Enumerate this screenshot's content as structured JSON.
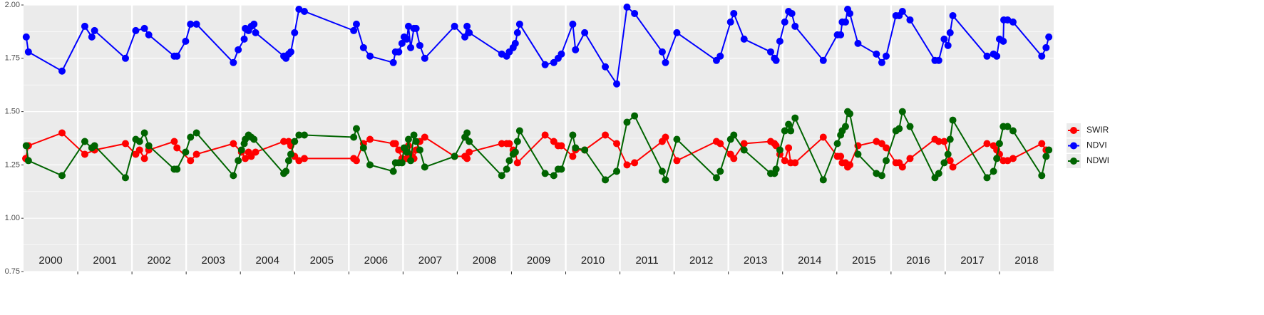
{
  "chart_data": {
    "type": "line",
    "xlim": [
      2000,
      2019
    ],
    "xticks": [
      2001,
      2002,
      2003,
      2004,
      2005,
      2006,
      2007,
      2008,
      2009,
      2010,
      2011,
      2012,
      2013,
      2014,
      2015,
      2016,
      2017,
      2018
    ],
    "ylim": [
      0.75,
      2.0
    ],
    "yticks": [
      {
        "value": 0.75,
        "label": "0.75"
      },
      {
        "value": 1.0,
        "label": "1.00"
      },
      {
        "value": 1.25,
        "label": "1.25"
      },
      {
        "value": 1.5,
        "label": "1.50"
      },
      {
        "value": 1.75,
        "label": "1.75"
      },
      {
        "value": 2.0,
        "label": "2.00"
      }
    ],
    "grid": true,
    "legend": "right",
    "year_labels": [
      "2000",
      "2001",
      "2002",
      "2003",
      "2004",
      "2005",
      "2006",
      "2007",
      "2008",
      "2009",
      "2010",
      "2011",
      "2012",
      "2013",
      "2014",
      "2015",
      "2016",
      "2017",
      "2018"
    ],
    "series": [
      {
        "name": "SWIR",
        "color": "#ff0000",
        "x": [
          2000.04,
          2000.09,
          2000.71,
          2001.13,
          2001.31,
          2001.88,
          2002.07,
          2002.14,
          2002.23,
          2002.31,
          2002.78,
          2002.83,
          2003.08,
          2003.19,
          2003.87,
          2004.02,
          2004.09,
          2004.15,
          2004.2,
          2004.28,
          2004.8,
          2004.89,
          2004.93,
          2005.0,
          2005.08,
          2005.18,
          2006.09,
          2006.14,
          2006.27,
          2006.39,
          2006.82,
          2006.86,
          2006.92,
          2006.98,
          2007.02,
          2007.07,
          2007.1,
          2007.14,
          2007.2,
          2007.24,
          2007.31,
          2007.4,
          2007.95,
          2008.14,
          2008.18,
          2008.22,
          2008.82,
          2008.91,
          2008.96,
          2009.03,
          2009.07,
          2009.11,
          2009.62,
          2009.78,
          2009.86,
          2009.92,
          2010.13,
          2010.18,
          2010.35,
          2010.73,
          2010.94,
          2011.13,
          2011.27,
          2011.78,
          2011.84,
          2012.05,
          2012.78,
          2012.85,
          2013.04,
          2013.1,
          2013.29,
          2013.78,
          2013.85,
          2013.88,
          2013.95,
          2014.04,
          2014.11,
          2014.15,
          2014.23,
          2014.75,
          2015.01,
          2015.07,
          2015.1,
          2015.16,
          2015.2,
          2015.24,
          2015.39,
          2015.73,
          2015.83,
          2015.91,
          2016.09,
          2016.15,
          2016.21,
          2016.35,
          2016.81,
          2016.88,
          2016.98,
          2017.09,
          2017.14,
          2017.77,
          2017.89,
          2017.95,
          2018.0,
          2018.07,
          2018.15,
          2018.25,
          2018.78,
          2018.86
        ],
        "values": [
          1.28,
          1.34,
          1.4,
          1.3,
          1.32,
          1.35,
          1.3,
          1.32,
          1.28,
          1.32,
          1.36,
          1.33,
          1.27,
          1.3,
          1.35,
          1.31,
          1.28,
          1.31,
          1.29,
          1.31,
          1.36,
          1.36,
          1.34,
          1.29,
          1.27,
          1.28,
          1.28,
          1.27,
          1.35,
          1.37,
          1.35,
          1.35,
          1.32,
          1.28,
          1.32,
          1.28,
          1.34,
          1.3,
          1.28,
          1.32,
          1.36,
          1.38,
          1.29,
          1.29,
          1.28,
          1.31,
          1.35,
          1.35,
          1.35,
          1.32,
          1.31,
          1.26,
          1.39,
          1.36,
          1.34,
          1.34,
          1.29,
          1.32,
          1.32,
          1.39,
          1.35,
          1.25,
          1.26,
          1.36,
          1.38,
          1.27,
          1.36,
          1.35,
          1.3,
          1.28,
          1.35,
          1.36,
          1.35,
          1.34,
          1.3,
          1.27,
          1.33,
          1.26,
          1.26,
          1.38,
          1.29,
          1.29,
          1.26,
          1.26,
          1.24,
          1.25,
          1.34,
          1.36,
          1.35,
          1.33,
          1.26,
          1.26,
          1.24,
          1.28,
          1.37,
          1.36,
          1.36,
          1.27,
          1.24,
          1.35,
          1.34,
          1.32,
          1.3,
          1.27,
          1.27,
          1.28,
          1.35,
          1.32
        ]
      },
      {
        "name": "NDVI",
        "color": "#0000ff",
        "x": [
          2000.05,
          2000.09,
          2000.71,
          2001.13,
          2001.26,
          2001.31,
          2001.88,
          2002.07,
          2002.23,
          2002.31,
          2002.78,
          2002.83,
          2002.99,
          2003.08,
          2003.19,
          2003.87,
          2003.96,
          2004.07,
          2004.09,
          2004.15,
          2004.2,
          2004.25,
          2004.28,
          2004.8,
          2004.84,
          2004.89,
          2004.93,
          2005.0,
          2005.08,
          2005.18,
          2006.09,
          2006.14,
          2006.27,
          2006.39,
          2006.82,
          2006.86,
          2006.92,
          2006.98,
          2007.02,
          2007.07,
          2007.1,
          2007.14,
          2007.2,
          2007.24,
          2007.31,
          2007.4,
          2007.95,
          2008.14,
          2008.18,
          2008.22,
          2008.82,
          2008.91,
          2008.96,
          2009.03,
          2009.07,
          2009.11,
          2009.15,
          2009.62,
          2009.78,
          2009.86,
          2009.92,
          2010.13,
          2010.18,
          2010.35,
          2010.73,
          2010.94,
          2011.13,
          2011.27,
          2011.78,
          2011.84,
          2012.05,
          2012.78,
          2012.85,
          2013.04,
          2013.1,
          2013.29,
          2013.78,
          2013.85,
          2013.88,
          2013.95,
          2014.04,
          2014.11,
          2014.17,
          2014.23,
          2014.75,
          2015.01,
          2015.07,
          2015.1,
          2015.16,
          2015.2,
          2015.24,
          2015.39,
          2015.73,
          2015.83,
          2015.91,
          2016.09,
          2016.15,
          2016.21,
          2016.35,
          2016.81,
          2016.88,
          2016.98,
          2017.05,
          2017.09,
          2017.14,
          2017.77,
          2017.89,
          2017.95,
          2018.0,
          2018.07,
          2018.08,
          2018.15,
          2018.25,
          2018.78,
          2018.86,
          2018.91
        ],
        "values": [
          1.85,
          1.78,
          1.69,
          1.9,
          1.85,
          1.88,
          1.75,
          1.88,
          1.89,
          1.86,
          1.76,
          1.76,
          1.83,
          1.91,
          1.91,
          1.73,
          1.79,
          1.84,
          1.89,
          1.88,
          1.9,
          1.91,
          1.87,
          1.76,
          1.75,
          1.77,
          1.78,
          1.87,
          1.98,
          1.97,
          1.88,
          1.91,
          1.8,
          1.76,
          1.73,
          1.78,
          1.78,
          1.82,
          1.85,
          1.84,
          1.9,
          1.8,
          1.89,
          1.89,
          1.81,
          1.75,
          1.9,
          1.85,
          1.9,
          1.87,
          1.77,
          1.76,
          1.78,
          1.8,
          1.82,
          1.87,
          1.91,
          1.72,
          1.73,
          1.75,
          1.77,
          1.91,
          1.79,
          1.87,
          1.71,
          1.63,
          1.99,
          1.96,
          1.78,
          1.73,
          1.87,
          1.74,
          1.76,
          1.92,
          1.96,
          1.84,
          1.78,
          1.75,
          1.74,
          1.83,
          1.92,
          1.97,
          1.96,
          1.9,
          1.74,
          1.86,
          1.86,
          1.92,
          1.92,
          1.98,
          1.96,
          1.82,
          1.77,
          1.73,
          1.76,
          1.95,
          1.95,
          1.97,
          1.93,
          1.74,
          1.74,
          1.84,
          1.81,
          1.87,
          1.95,
          1.76,
          1.77,
          1.76,
          1.84,
          1.83,
          1.93,
          1.93,
          1.92,
          1.76,
          1.8,
          1.85
        ]
      },
      {
        "name": "NDWI",
        "color": "#006400",
        "x": [
          2000.05,
          2000.09,
          2000.71,
          2001.13,
          2001.26,
          2001.31,
          2001.88,
          2002.07,
          2002.14,
          2002.23,
          2002.31,
          2002.78,
          2002.83,
          2002.99,
          2003.08,
          2003.19,
          2003.87,
          2003.96,
          2004.02,
          2004.07,
          2004.09,
          2004.15,
          2004.2,
          2004.25,
          2004.8,
          2004.84,
          2004.89,
          2004.93,
          2005.0,
          2005.08,
          2005.18,
          2006.09,
          2006.14,
          2006.27,
          2006.39,
          2006.82,
          2006.86,
          2006.92,
          2006.98,
          2007.02,
          2007.07,
          2007.1,
          2007.14,
          2007.2,
          2007.24,
          2007.31,
          2007.4,
          2007.95,
          2008.14,
          2008.18,
          2008.22,
          2008.82,
          2008.91,
          2008.96,
          2009.03,
          2009.07,
          2009.11,
          2009.15,
          2009.62,
          2009.78,
          2009.86,
          2009.92,
          2010.13,
          2010.18,
          2010.35,
          2010.73,
          2010.94,
          2011.13,
          2011.27,
          2011.78,
          2011.84,
          2012.05,
          2012.78,
          2012.85,
          2013.04,
          2013.1,
          2013.29,
          2013.78,
          2013.85,
          2013.88,
          2013.95,
          2014.04,
          2014.11,
          2014.15,
          2014.23,
          2014.75,
          2015.01,
          2015.07,
          2015.1,
          2015.16,
          2015.2,
          2015.24,
          2015.39,
          2015.73,
          2015.83,
          2015.91,
          2016.09,
          2016.15,
          2016.21,
          2016.35,
          2016.81,
          2016.88,
          2016.98,
          2017.05,
          2017.09,
          2017.14,
          2017.77,
          2017.89,
          2017.95,
          2018.0,
          2018.07,
          2018.15,
          2018.25,
          2018.78,
          2018.86,
          2018.91
        ],
        "values": [
          1.34,
          1.27,
          1.2,
          1.36,
          1.33,
          1.34,
          1.19,
          1.37,
          1.36,
          1.4,
          1.34,
          1.23,
          1.23,
          1.31,
          1.38,
          1.4,
          1.2,
          1.27,
          1.32,
          1.35,
          1.37,
          1.39,
          1.38,
          1.37,
          1.21,
          1.22,
          1.27,
          1.3,
          1.36,
          1.39,
          1.39,
          1.38,
          1.42,
          1.33,
          1.25,
          1.22,
          1.26,
          1.26,
          1.26,
          1.33,
          1.31,
          1.37,
          1.27,
          1.39,
          1.36,
          1.32,
          1.24,
          1.29,
          1.38,
          1.4,
          1.36,
          1.2,
          1.23,
          1.27,
          1.3,
          1.31,
          1.36,
          1.41,
          1.21,
          1.2,
          1.23,
          1.23,
          1.39,
          1.33,
          1.32,
          1.18,
          1.22,
          1.45,
          1.48,
          1.22,
          1.18,
          1.37,
          1.19,
          1.22,
          1.37,
          1.39,
          1.32,
          1.21,
          1.21,
          1.23,
          1.32,
          1.41,
          1.44,
          1.41,
          1.47,
          1.18,
          1.35,
          1.39,
          1.41,
          1.43,
          1.5,
          1.49,
          1.3,
          1.21,
          1.2,
          1.27,
          1.41,
          1.42,
          1.5,
          1.43,
          1.19,
          1.21,
          1.26,
          1.3,
          1.37,
          1.46,
          1.19,
          1.22,
          1.28,
          1.35,
          1.43,
          1.43,
          1.41,
          1.2,
          1.29,
          1.32
        ]
      }
    ]
  }
}
